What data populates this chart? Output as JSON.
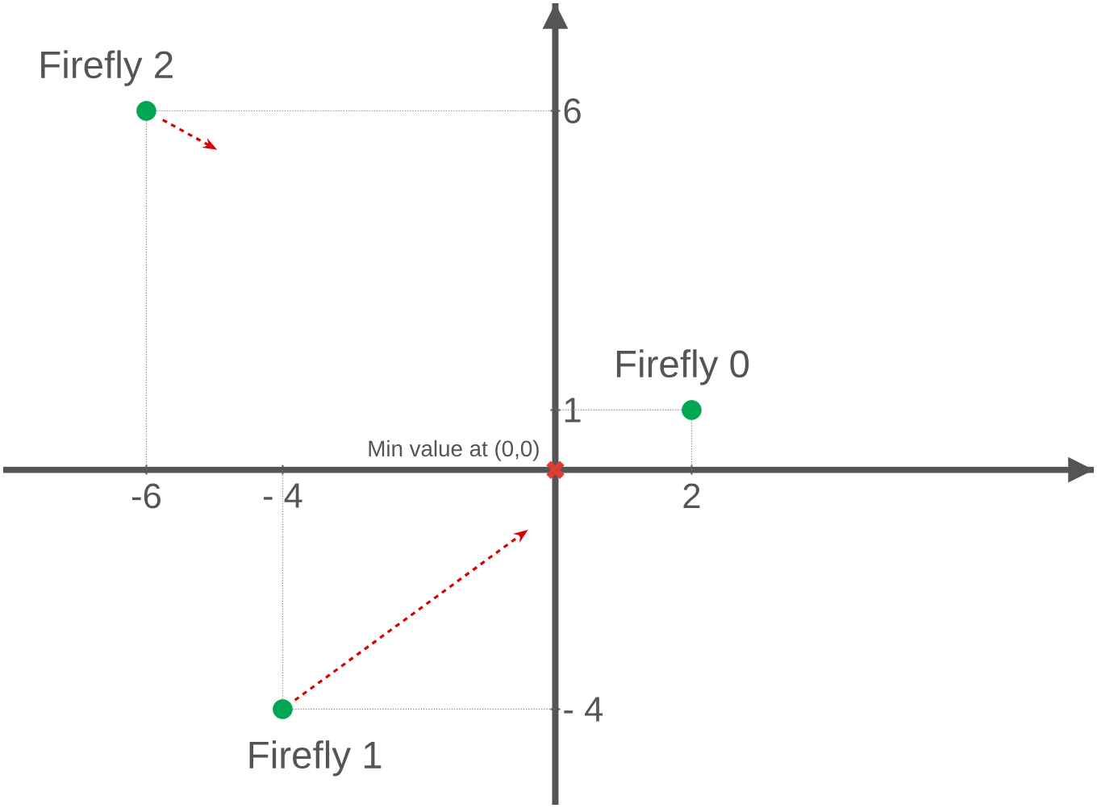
{
  "chart_data": {
    "type": "scatter",
    "xlim": [
      -8.1,
      7.9
    ],
    "ylim": [
      -5.6,
      7.8
    ],
    "xticks": [
      -6,
      {
        "value": -4,
        "label": "- 4"
      },
      2
    ],
    "yticks": [
      {
        "value": -4,
        "label": "- 4"
      },
      1,
      6
    ],
    "grid": false,
    "series": [
      {
        "color": "#00a651",
        "x": [
          2,
          -4,
          -6
        ],
        "values": [
          1,
          -4,
          6
        ],
        "marker": "circle"
      },
      {
        "color": "#e03c31",
        "x": [
          0
        ],
        "values": [
          0
        ],
        "marker": "cross"
      }
    ],
    "annotations": [
      {
        "text": "Firefly 0",
        "x": 2,
        "y": 1
      },
      {
        "text": "Firefly 1",
        "x": -4,
        "y": -4
      },
      {
        "text": "Firefly 2",
        "x": -6,
        "y": 6
      },
      {
        "text": "Min value at (0,0)",
        "x": 0,
        "y": 0
      }
    ]
  }
}
